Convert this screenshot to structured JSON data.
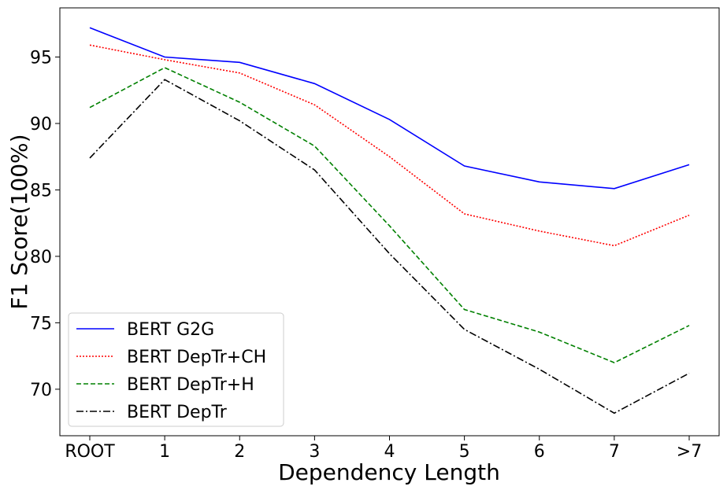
{
  "chart_data": {
    "type": "line",
    "xlabel": "Dependency Length",
    "ylabel": "F1 Score(100%)",
    "categories": [
      "ROOT",
      "1",
      "2",
      "3",
      "4",
      "5",
      "6",
      "7",
      ">7"
    ],
    "ylim": [
      66.5,
      98.7
    ],
    "yticks": [
      70,
      75,
      80,
      85,
      90,
      95
    ],
    "grid": false,
    "legend_position": "bottom-left",
    "series": [
      {
        "name": "BERT G2G",
        "color": "#0000ff",
        "dash": "solid",
        "values": [
          97.2,
          95.0,
          94.6,
          93.0,
          90.3,
          86.8,
          85.6,
          85.1,
          86.9
        ]
      },
      {
        "name": "BERT DepTr+CH",
        "color": "#ff0000",
        "dash": "dotted",
        "values": [
          95.9,
          94.8,
          93.8,
          91.4,
          87.5,
          83.2,
          81.9,
          80.8,
          83.1
        ]
      },
      {
        "name": "BERT DepTr+H",
        "color": "#008000",
        "dash": "dashed",
        "values": [
          91.2,
          94.2,
          91.6,
          88.3,
          82.3,
          76.0,
          74.3,
          72.0,
          74.8
        ]
      },
      {
        "name": "BERT DepTr",
        "color": "#000000",
        "dash": "dashdot",
        "values": [
          87.4,
          93.3,
          90.2,
          86.5,
          80.2,
          74.5,
          71.5,
          68.2,
          71.2
        ]
      }
    ]
  }
}
